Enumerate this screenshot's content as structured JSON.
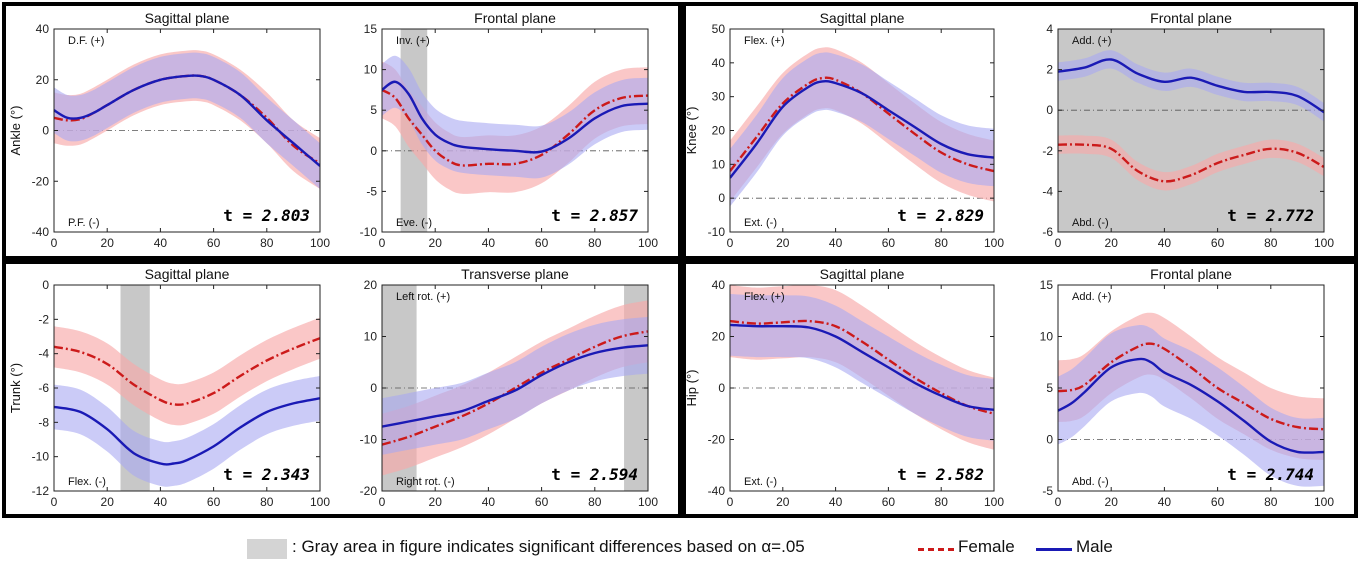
{
  "chart_data": [
    {
      "type": "line",
      "title": "Sagittal plane",
      "ylabel": "Ankle (°)",
      "xlim": [
        0,
        100
      ],
      "ylim": [
        -40,
        40
      ],
      "xticks": [
        0,
        20,
        40,
        60,
        80,
        100
      ],
      "yticks": [
        -40,
        -20,
        0,
        20,
        40
      ],
      "annotation_top": "D.F. (+)",
      "annotation_bottom": "P.F. (-)",
      "t_label": "t = ",
      "t_value": "2.803",
      "significant_ranges": [],
      "series": [
        {
          "name": "Female",
          "x": [
            0,
            5,
            10,
            15,
            20,
            30,
            40,
            50,
            55,
            60,
            70,
            80,
            90,
            100
          ],
          "values": [
            5,
            4,
            4.5,
            7,
            10,
            16,
            20,
            21.5,
            21.5,
            20,
            14,
            5,
            -6,
            -13
          ],
          "band": [
            10,
            10,
            10,
            10,
            10,
            10,
            10,
            10,
            10,
            10,
            10,
            10,
            10,
            10
          ]
        },
        {
          "name": "Male",
          "x": [
            0,
            5,
            10,
            15,
            20,
            30,
            40,
            50,
            55,
            60,
            70,
            80,
            90,
            100
          ],
          "values": [
            8,
            5,
            5,
            7,
            10,
            16,
            20,
            21.5,
            21.5,
            20,
            14,
            4,
            -5,
            -14
          ],
          "band": [
            9,
            9,
            9,
            9,
            9,
            9,
            9,
            9,
            9,
            9,
            9,
            9,
            9,
            9
          ]
        }
      ]
    },
    {
      "type": "line",
      "title": "Frontal plane",
      "ylabel": "",
      "xlim": [
        0,
        100
      ],
      "ylim": [
        -10,
        15
      ],
      "xticks": [
        0,
        20,
        40,
        60,
        80,
        100
      ],
      "yticks": [
        -10,
        -5,
        0,
        5,
        10,
        15
      ],
      "annotation_top": "Inv. (+)",
      "annotation_bottom": "Eve. (-)",
      "t_label": "t = ",
      "t_value": "2.857",
      "significant_ranges": [
        [
          7,
          17
        ]
      ],
      "series": [
        {
          "name": "Female",
          "x": [
            0,
            5,
            10,
            15,
            20,
            25,
            30,
            40,
            50,
            60,
            70,
            80,
            90,
            100
          ],
          "values": [
            7.5,
            6.5,
            4,
            2,
            0,
            -1.2,
            -1.8,
            -1.6,
            -1.6,
            -0.5,
            2,
            5,
            6.5,
            6.8
          ],
          "band": [
            3.5,
            3.5,
            3.5,
            3.5,
            3.5,
            3.5,
            3.5,
            3.5,
            3.5,
            3.5,
            3.5,
            3.5,
            3.5,
            3.5
          ]
        },
        {
          "name": "Male",
          "x": [
            0,
            5,
            10,
            15,
            20,
            25,
            30,
            40,
            50,
            60,
            70,
            80,
            90,
            100
          ],
          "values": [
            7.5,
            8.5,
            7,
            4,
            2,
            1,
            0.5,
            0.2,
            0,
            -0.1,
            1.5,
            4,
            5.5,
            5.8
          ],
          "band": [
            3.2,
            3.2,
            3.2,
            3.2,
            3.2,
            3.2,
            3.2,
            3.2,
            3.2,
            3.2,
            3.2,
            3.2,
            3.2,
            3.2
          ]
        }
      ]
    },
    {
      "type": "line",
      "title": "Sagittal plane",
      "ylabel": "Knee (°)",
      "xlim": [
        0,
        100
      ],
      "ylim": [
        -10,
        50
      ],
      "xticks": [
        0,
        20,
        40,
        60,
        80,
        100
      ],
      "yticks": [
        -10,
        0,
        10,
        20,
        30,
        40,
        50
      ],
      "annotation_top": "Flex. (+)",
      "annotation_bottom": "Ext. (-)",
      "t_label": "t = ",
      "t_value": "2.829",
      "significant_ranges": [],
      "series": [
        {
          "name": "Female",
          "x": [
            0,
            10,
            20,
            30,
            35,
            40,
            50,
            60,
            70,
            80,
            90,
            100
          ],
          "values": [
            8,
            18,
            28,
            34,
            35.5,
            35,
            31,
            25,
            19,
            13.5,
            10,
            8
          ],
          "band": [
            9,
            9,
            9,
            9,
            9,
            9,
            9,
            9,
            9,
            9,
            9,
            9
          ]
        },
        {
          "name": "Male",
          "x": [
            0,
            10,
            20,
            30,
            35,
            40,
            50,
            60,
            70,
            80,
            90,
            100
          ],
          "values": [
            6,
            16,
            27,
            33,
            34.5,
            34,
            31,
            26,
            21,
            16,
            13,
            12
          ],
          "band": [
            8.5,
            8.5,
            8.5,
            8.5,
            8.5,
            8.5,
            8.5,
            8.5,
            8.5,
            8.5,
            8.5,
            8.5
          ]
        }
      ]
    },
    {
      "type": "line",
      "title": "Frontal plane",
      "ylabel": "",
      "xlim": [
        0,
        100
      ],
      "ylim": [
        -6,
        4
      ],
      "xticks": [
        0,
        20,
        40,
        60,
        80,
        100
      ],
      "yticks": [
        -6,
        -4,
        -2,
        0,
        2,
        4
      ],
      "annotation_top": "Add. (+)",
      "annotation_bottom": "Abd. (-)",
      "t_label": "t = ",
      "t_value": "2.772",
      "significant_ranges": [
        [
          0,
          100
        ]
      ],
      "series": [
        {
          "name": "Female",
          "x": [
            0,
            10,
            20,
            30,
            40,
            50,
            60,
            70,
            80,
            90,
            100
          ],
          "values": [
            -1.7,
            -1.7,
            -1.9,
            -3,
            -3.5,
            -3.2,
            -2.6,
            -2.2,
            -1.9,
            -2.1,
            -2.8
          ],
          "band": [
            0.45,
            0.45,
            0.45,
            0.45,
            0.45,
            0.45,
            0.45,
            0.45,
            0.45,
            0.45,
            0.45
          ]
        },
        {
          "name": "Male",
          "x": [
            0,
            10,
            20,
            30,
            40,
            50,
            60,
            70,
            80,
            90,
            100
          ],
          "values": [
            1.9,
            2.1,
            2.5,
            1.8,
            1.4,
            1.6,
            1.2,
            0.9,
            0.9,
            0.7,
            -0.1
          ],
          "band": [
            0.45,
            0.45,
            0.45,
            0.45,
            0.45,
            0.45,
            0.45,
            0.45,
            0.45,
            0.45,
            0.45
          ]
        }
      ]
    },
    {
      "type": "line",
      "title": "Sagittal plane",
      "ylabel": "Trunk (°)",
      "xlim": [
        0,
        100
      ],
      "ylim": [
        -12,
        0
      ],
      "xticks": [
        0,
        20,
        40,
        60,
        80,
        100
      ],
      "yticks": [
        -12,
        -10,
        -8,
        -6,
        -4,
        -2,
        0
      ],
      "annotation_top": "",
      "annotation_bottom": "Flex. (-)",
      "t_label": "t = ",
      "t_value": "2.343",
      "significant_ranges": [
        [
          25,
          36
        ]
      ],
      "series": [
        {
          "name": "Female",
          "x": [
            0,
            10,
            20,
            30,
            40,
            45,
            50,
            60,
            70,
            80,
            90,
            100
          ],
          "values": [
            -3.6,
            -3.9,
            -4.6,
            -5.8,
            -6.7,
            -6.95,
            -6.9,
            -6.3,
            -5.3,
            -4.4,
            -3.7,
            -3.1
          ],
          "band": [
            1.2,
            1.2,
            1.2,
            1.2,
            1.2,
            1.2,
            1.2,
            1.2,
            1.2,
            1.2,
            1.2,
            1.2
          ]
        },
        {
          "name": "Male",
          "x": [
            0,
            10,
            20,
            30,
            40,
            45,
            50,
            60,
            70,
            80,
            90,
            100
          ],
          "values": [
            -7.1,
            -7.4,
            -8.4,
            -9.8,
            -10.4,
            -10.4,
            -10.2,
            -9.4,
            -8.3,
            -7.4,
            -6.9,
            -6.6
          ],
          "band": [
            1.3,
            1.3,
            1.3,
            1.3,
            1.3,
            1.3,
            1.3,
            1.3,
            1.3,
            1.3,
            1.3,
            1.3
          ]
        }
      ]
    },
    {
      "type": "line",
      "title": "Transverse plane",
      "ylabel": "",
      "xlim": [
        0,
        100
      ],
      "ylim": [
        -20,
        20
      ],
      "xticks": [
        0,
        20,
        40,
        60,
        80,
        100
      ],
      "yticks": [
        -20,
        -10,
        0,
        10,
        20
      ],
      "annotation_top": "Left rot. (+)",
      "annotation_bottom": "Right rot. (-)",
      "t_label": "t = ",
      "t_value": "2.594",
      "significant_ranges": [
        [
          0,
          13
        ],
        [
          91,
          100
        ]
      ],
      "series": [
        {
          "name": "Female",
          "x": [
            0,
            10,
            20,
            30,
            40,
            50,
            60,
            70,
            80,
            90,
            100
          ],
          "values": [
            -11,
            -9.5,
            -7.5,
            -5.5,
            -3,
            0,
            3,
            5.5,
            8,
            10,
            11
          ],
          "band": [
            6,
            6,
            6,
            6,
            6,
            6,
            6,
            6,
            6,
            6,
            6
          ]
        },
        {
          "name": "Male",
          "x": [
            0,
            10,
            20,
            30,
            40,
            50,
            60,
            70,
            80,
            90,
            100
          ],
          "values": [
            -7.5,
            -6.5,
            -5.5,
            -4.5,
            -2.5,
            -0.5,
            2.5,
            5,
            6.8,
            7.8,
            8.3
          ],
          "band": [
            5.5,
            5.5,
            5.5,
            5.5,
            5.5,
            5.5,
            5.5,
            5.5,
            5.5,
            5.5,
            5.5
          ]
        }
      ]
    },
    {
      "type": "line",
      "title": "Sagittal plane",
      "ylabel": "Hip (°)",
      "xlim": [
        0,
        100
      ],
      "ylim": [
        -40,
        40
      ],
      "xticks": [
        0,
        20,
        40,
        60,
        80,
        100
      ],
      "yticks": [
        -40,
        -20,
        0,
        20,
        40
      ],
      "annotation_top": "Flex. (+)",
      "annotation_bottom": "Ext. (-)",
      "t_label": "t = ",
      "t_value": "2.582",
      "significant_ranges": [],
      "series": [
        {
          "name": "Female",
          "x": [
            0,
            10,
            20,
            30,
            40,
            50,
            60,
            70,
            80,
            90,
            100
          ],
          "values": [
            26,
            25,
            25.5,
            26,
            24,
            18,
            11,
            4,
            -2,
            -7,
            -10
          ],
          "band": [
            14,
            14,
            14,
            14,
            14,
            14,
            14,
            14,
            14,
            14,
            14
          ]
        },
        {
          "name": "Male",
          "x": [
            0,
            10,
            20,
            30,
            40,
            50,
            60,
            70,
            80,
            90,
            100
          ],
          "values": [
            24.5,
            24,
            24,
            23.5,
            20,
            14,
            8,
            2,
            -3,
            -7,
            -8.5
          ],
          "band": [
            12,
            12,
            12,
            12,
            12,
            12,
            12,
            12,
            12,
            12,
            12
          ]
        }
      ]
    },
    {
      "type": "line",
      "title": "Frontal plane",
      "ylabel": "",
      "xlim": [
        0,
        100
      ],
      "ylim": [
        -5,
        15
      ],
      "xticks": [
        0,
        20,
        40,
        60,
        80,
        100
      ],
      "yticks": [
        -5,
        0,
        5,
        10,
        15
      ],
      "annotation_top": "Add. (+)",
      "annotation_bottom": "Abd. (-)",
      "t_label": "t = ",
      "t_value": "2.744",
      "significant_ranges": [],
      "series": [
        {
          "name": "Female",
          "x": [
            0,
            5,
            10,
            20,
            30,
            35,
            40,
            50,
            60,
            70,
            80,
            90,
            100
          ],
          "values": [
            4.7,
            4.8,
            5.3,
            7.5,
            9,
            9.3,
            8.8,
            7,
            5,
            3.5,
            2,
            1.2,
            1
          ],
          "band": [
            3,
            3,
            3,
            3,
            3,
            3,
            3,
            3,
            3,
            3,
            3,
            3,
            3
          ]
        },
        {
          "name": "Male",
          "x": [
            0,
            5,
            10,
            20,
            30,
            35,
            40,
            50,
            60,
            70,
            80,
            90,
            100
          ],
          "values": [
            2.8,
            3.5,
            4.6,
            7,
            7.8,
            7.5,
            6.5,
            5.3,
            3.7,
            1.8,
            -0.2,
            -1.2,
            -1.2
          ],
          "band": [
            3.3,
            3.3,
            3.3,
            3.3,
            3.3,
            3.3,
            3.3,
            3.3,
            3.3,
            3.3,
            3.3,
            3.3,
            3.3
          ]
        }
      ]
    }
  ],
  "legend": {
    "gray_note": ": Gray area in figure indicates significant differences based on α=.05",
    "female_label": "Female",
    "male_label": "Male"
  },
  "colors": {
    "female_line": "#cc1a1a",
    "female_band": "#f7a9a9",
    "male_line": "#1a1ab5",
    "male_band": "#a8a8f2",
    "significance": "#c8c8c8"
  }
}
